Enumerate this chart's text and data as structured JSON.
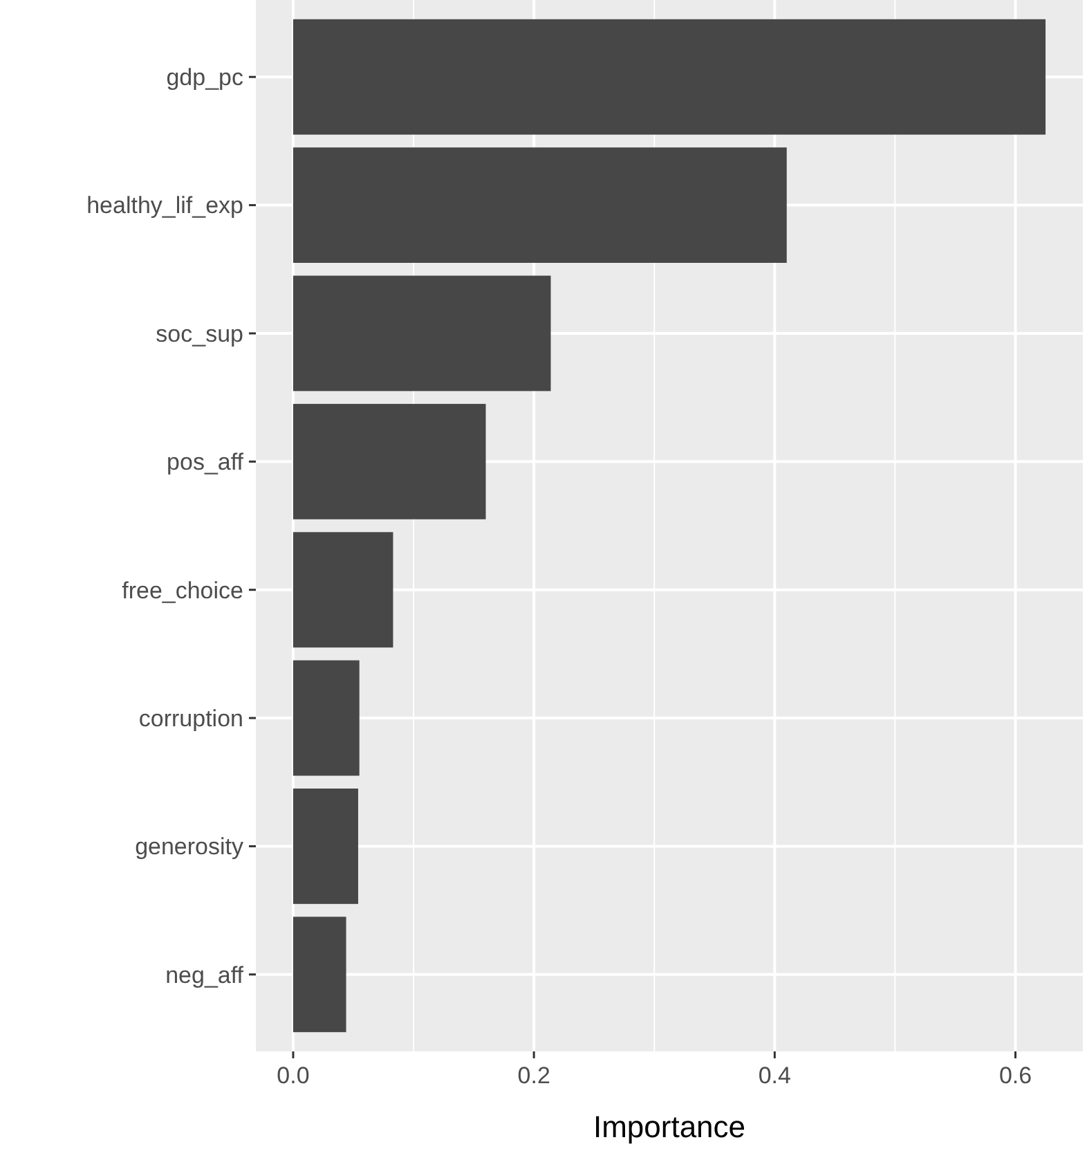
{
  "chart_data": {
    "type": "bar",
    "orientation": "horizontal",
    "xlabel": "Importance",
    "categories": [
      "gdp_pc",
      "healthy_lif_exp",
      "soc_sup",
      "pos_aff",
      "free_choice",
      "corruption",
      "generosity",
      "neg_aff"
    ],
    "values": [
      0.625,
      0.41,
      0.214,
      0.16,
      0.083,
      0.055,
      0.054,
      0.044
    ],
    "color": "#474747",
    "xlim": [
      -0.031,
      0.656
    ],
    "xticks": [
      {
        "value": 0,
        "label": "0.0"
      },
      {
        "value": 0.1,
        "label": null
      },
      {
        "value": 0.2,
        "label": "0.2"
      },
      {
        "value": 0.3,
        "label": null
      },
      {
        "value": 0.4,
        "label": "0.4"
      },
      {
        "value": 0.5,
        "label": null
      },
      {
        "value": 0.6,
        "label": "0.6"
      }
    ],
    "grid": true
  }
}
